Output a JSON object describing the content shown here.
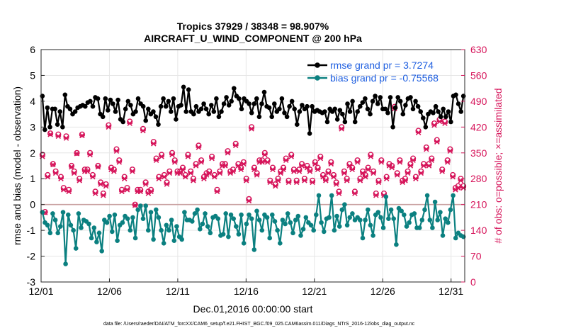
{
  "chart_data": {
    "type": "line",
    "title": "Tropics 37929 / 38348 = 98.907%",
    "subtitle": "AIRCRAFT_U_WIND_COMPONENT @ 200 hPa",
    "xlabel": "Dec.01,2016 00:00:00 start",
    "ylabel": "rmse and bias (model - observation)",
    "ylabel_right": "# of obs: o=possible; ×=assimilated",
    "footnote": "data file: /Users/raeder/DAI/ATM_forcXX/CAM6_setup/f.e21.FHIST_BGC.f09_025.CAM6assim.011/Diags_NTrS_2016-12/obs_diag_output.nc",
    "ylim": [
      -3,
      6
    ],
    "ylim_right": [
      0,
      630
    ],
    "xlim": [
      0,
      31
    ],
    "x_ticks": [
      0,
      5,
      10,
      15,
      20,
      25,
      30
    ],
    "x_tick_labels": [
      "12/01",
      "12/06",
      "12/11",
      "12/16",
      "12/21",
      "12/26",
      "12/31"
    ],
    "y_ticks": [
      -3,
      -2,
      -1,
      0,
      1,
      2,
      3,
      4,
      5,
      6
    ],
    "y_tick_labels": [
      "-3",
      "-2",
      "-1",
      "0",
      "1",
      "2",
      "3",
      "4",
      "5",
      "6"
    ],
    "y_ticks_right": [
      0,
      70,
      140,
      210,
      280,
      350,
      420,
      490,
      560,
      630
    ],
    "y_tick_labels_right": [
      "0",
      "70",
      "140",
      "210",
      "280",
      "350",
      "420",
      "490",
      "560",
      "630"
    ],
    "legend_position": "top-right",
    "series": [
      {
        "name": "rmse grand pr = 3.7274",
        "color": "#000000",
        "values": [
          4.2,
          2.9,
          3.75,
          3.0,
          3.7,
          3.7,
          3.1,
          3.6,
          3.0,
          4.25,
          3.8,
          3.7,
          3.5,
          3.6,
          3.75,
          3.8,
          3.85,
          3.8,
          3.95,
          4.0,
          3.8,
          4.15,
          4.1,
          3.5,
          3.4,
          4.1,
          3.65,
          4.05,
          3.9,
          3.6,
          4.05,
          3.3,
          3.2,
          3.7,
          4.0,
          3.85,
          3.5,
          3.6,
          4.1,
          3.9,
          3.8,
          3.25,
          3.7,
          3.5,
          3.6,
          3.4,
          3.1,
          3.8,
          4.1,
          3.8,
          4.0,
          3.6,
          4.1,
          3.3,
          3.8,
          3.85,
          4.55,
          3.6,
          4.45,
          3.6,
          3.5,
          3.8,
          3.6,
          3.7,
          3.9,
          3.7,
          3.5,
          3.85,
          3.6,
          4.1,
          3.4,
          3.6,
          3.9,
          4.15,
          3.85,
          4.0,
          4.5,
          4.2,
          4.1,
          3.7,
          4.1,
          4.0,
          3.9,
          3.55,
          3.9,
          4.1,
          3.4,
          3.9,
          4.35,
          3.8,
          3.75,
          3.4,
          3.9,
          3.6,
          3.7,
          4.1,
          3.55,
          3.4,
          3.8,
          4.0,
          3.7,
          3.1,
          3.6,
          3.85,
          3.7,
          3.8,
          2.75,
          3.8,
          3.6,
          3.65,
          3.6,
          3.55,
          3.6,
          3.2,
          3.7,
          3.6,
          3.7,
          3.3,
          3.65,
          3.5,
          3.2,
          3.9,
          3.6,
          4.0,
          3.2,
          3.6,
          3.8,
          3.95,
          4.1,
          3.7,
          3.5,
          4.0,
          4.2,
          3.9,
          4.15,
          3.7,
          3.7,
          3.55,
          4.15,
          3.0,
          3.75,
          4.15,
          4.0,
          3.5,
          3.85,
          4.1,
          4.15,
          3.7,
          4.0,
          3.8,
          3.6,
          3.35,
          3.0,
          3.5,
          3.6,
          3.55,
          3.8,
          3.6,
          3.4,
          3.7,
          3.4,
          3.6,
          3.2,
          4.2,
          4.25,
          3.9,
          3.6,
          4.2
        ]
      },
      {
        "name": "bias grand pr = -0.75568",
        "color": "#0b8080",
        "values": [
          -0.3,
          -0.7,
          -0.8,
          -1.1,
          -0.35,
          -0.6,
          -1.1,
          -0.85,
          -0.3,
          -2.3,
          -0.4,
          -0.8,
          -1.0,
          -1.7,
          -0.35,
          -0.9,
          -0.6,
          -0.65,
          -0.75,
          -1.3,
          -0.9,
          -1.45,
          -1.1,
          -1.8,
          -0.6,
          -0.7,
          -0.45,
          -1.05,
          -0.4,
          -1.4,
          -0.8,
          -0.7,
          -0.45,
          -0.55,
          -1.0,
          -0.5,
          -1.3,
          -0.2,
          -0.05,
          -0.55,
          -0.05,
          -1.0,
          -0.3,
          -1.35,
          -0.2,
          -0.5,
          -1.0,
          -1.5,
          -0.8,
          -1.0,
          -0.6,
          -1.4,
          -0.85,
          -1.25,
          -1.35,
          -0.3,
          -0.6,
          -0.6,
          -0.65,
          -0.35,
          -0.2,
          -0.95,
          -0.75,
          -0.35,
          -0.85,
          -1.1,
          -0.5,
          -0.45,
          -0.55,
          -1.2,
          -1.15,
          -0.35,
          -1.25,
          -0.4,
          -0.55,
          -0.85,
          -1.15,
          -0.4,
          -1.5,
          -0.75,
          -0.4,
          -0.55,
          -1.75,
          -0.25,
          -0.6,
          -1.0,
          -0.4,
          -0.5,
          -1.3,
          -0.4,
          -0.65,
          -1.0,
          -1.5,
          -0.6,
          -0.75,
          -0.35,
          -0.7,
          -1.1,
          -0.6,
          -0.45,
          -1.2,
          -0.95,
          -0.5,
          -0.7,
          -0.8,
          -1.0,
          -0.4,
          0.35,
          -0.7,
          -1.05,
          -0.55,
          -0.5,
          0.35,
          -1.0,
          -0.45,
          -0.85,
          -0.2,
          0.0,
          -0.8,
          -0.5,
          -0.35,
          -0.6,
          -0.5,
          -0.6,
          -1.3,
          -0.6,
          -0.2,
          -0.8,
          -1.2,
          -0.4,
          -0.3,
          -0.5,
          -0.9,
          0.3,
          -0.55,
          -0.2,
          -0.55,
          -1.55,
          -0.15,
          -0.25,
          -0.4,
          -0.85,
          -0.7,
          -0.4,
          -0.35,
          -0.9,
          -0.9,
          -0.6,
          -0.2,
          0.35,
          -0.6,
          -0.9,
          0.1,
          -0.6,
          -0.3,
          -1.2,
          -0.55,
          -0.7,
          -0.2,
          0.35,
          -1.3,
          -1.1,
          -1.2,
          -1.25
        ]
      },
      {
        "name": "possible",
        "axis": "right",
        "color": "#d6145a",
        "marker": "circle",
        "values": [
          345,
          190,
          290,
          403,
          320,
          300,
          400,
          285,
          255,
          395,
          250,
          315,
          300,
          350,
          280,
          400,
          305,
          305,
          350,
          290,
          245,
          315,
          270,
          240,
          265,
          425,
          310,
          305,
          360,
          330,
          250,
          285,
          255,
          435,
          305,
          210,
          250,
          250,
          415,
          270,
          245,
          250,
          380,
          335,
          285,
          345,
          290,
          270,
          300,
          350,
          330,
          300,
          300,
          310,
          290,
          345,
          300,
          280,
          320,
          370,
          330,
          285,
          295,
          300,
          340,
          290,
          250,
          300,
          320,
          320,
          355,
          300,
          305,
          375,
          320,
          310,
          325,
          280,
          225,
          420,
          310,
          295,
          330,
          330,
          350,
          330,
          275,
          310,
          265,
          280,
          300,
          310,
          335,
          275,
          345,
          305,
          275,
          305,
          320,
          280,
          315,
          305,
          275,
          325,
          310,
          340,
          290,
          280,
          300,
          325,
          290,
          270,
          245,
          420,
          300,
          280,
          320,
          310,
          245,
          330,
          280,
          300,
          290,
          310,
          345,
          300,
          240,
          275,
          330,
          240,
          285,
          320,
          315,
          475,
          295,
          330,
          275,
          280,
          300,
          320,
          335,
          285,
          410,
          300,
          320,
          365,
          320,
          335,
          430,
          385,
          440,
          305,
          435,
          330,
          360,
          290,
          255,
          260,
          280,
          260
        ]
      },
      {
        "name": "assimilated",
        "axis": "right",
        "color": "#d6145a",
        "marker": "x",
        "values": [
          340,
          188,
          285,
          400,
          318,
          295,
          395,
          280,
          250,
          390,
          245,
          312,
          295,
          348,
          275,
          397,
          300,
          300,
          345,
          285,
          240,
          312,
          265,
          235,
          260,
          420,
          305,
          300,
          355,
          325,
          245,
          280,
          250,
          430,
          300,
          208,
          245,
          245,
          410,
          265,
          240,
          245,
          375,
          330,
          280,
          340,
          285,
          265,
          295,
          345,
          325,
          295,
          295,
          305,
          285,
          340,
          295,
          275,
          315,
          365,
          325,
          280,
          290,
          295,
          335,
          285,
          245,
          295,
          315,
          315,
          350,
          295,
          300,
          370,
          315,
          305,
          320,
          275,
          220,
          415,
          305,
          290,
          325,
          325,
          345,
          325,
          270,
          305,
          260,
          275,
          295,
          305,
          330,
          270,
          340,
          300,
          270,
          300,
          315,
          275,
          310,
          300,
          270,
          320,
          305,
          335,
          285,
          275,
          295,
          320,
          285,
          265,
          240,
          415,
          295,
          275,
          315,
          305,
          240,
          325,
          275,
          295,
          285,
          305,
          340,
          295,
          235,
          270,
          325,
          235,
          280,
          315,
          310,
          470,
          290,
          325,
          270,
          275,
          295,
          315,
          330,
          280,
          405,
          295,
          315,
          360,
          315,
          330,
          425,
          380,
          435,
          300,
          430,
          325,
          355,
          285,
          250,
          255,
          275,
          255
        ]
      }
    ]
  }
}
